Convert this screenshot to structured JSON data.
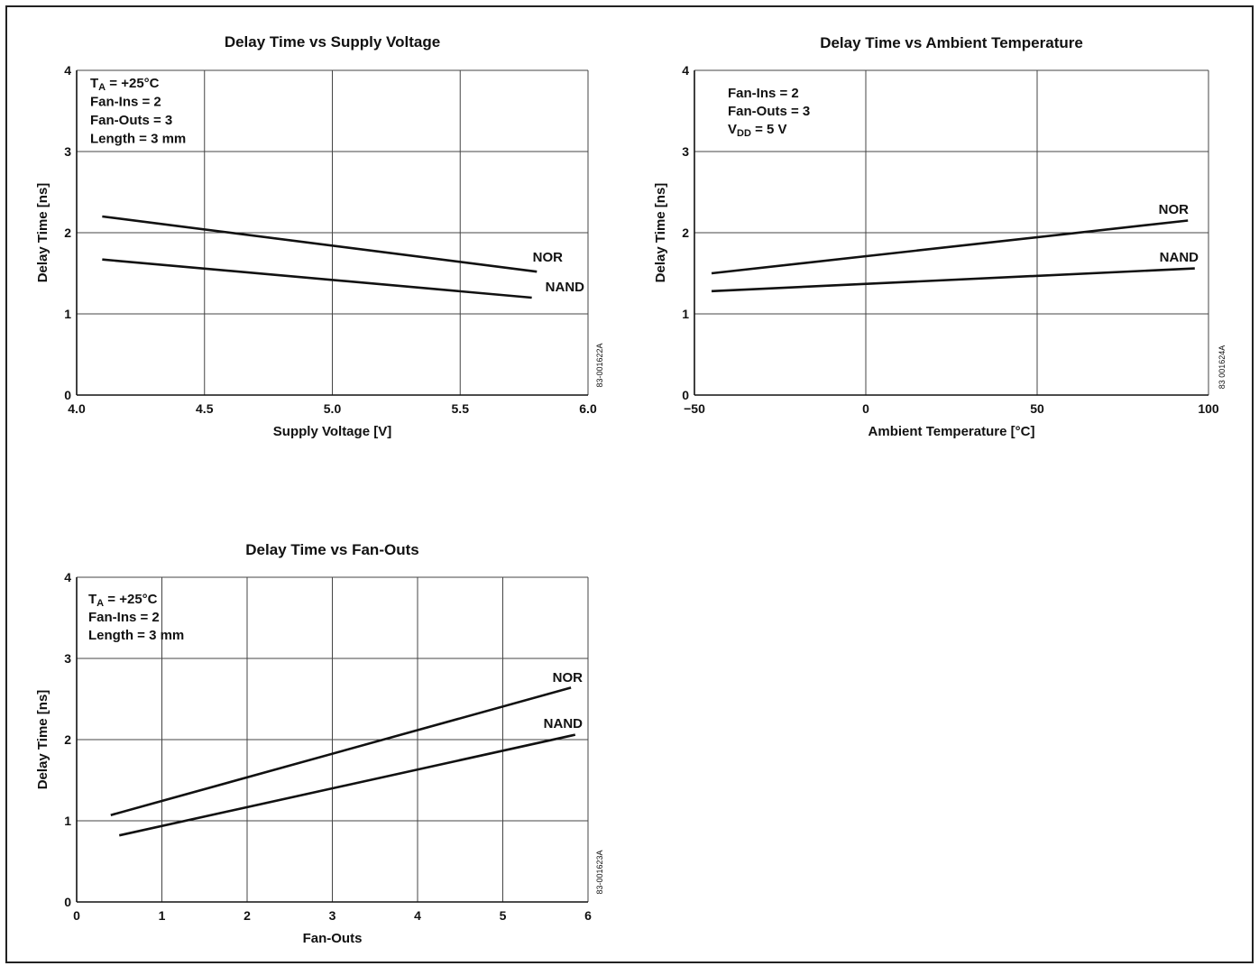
{
  "chart_data": [
    {
      "type": "line",
      "title": "Delay Time vs Supply Voltage",
      "xlabel": "Supply Voltage [V]",
      "ylabel": "Delay Time [ns]",
      "xlim": [
        4.0,
        6.0
      ],
      "ylim": [
        0,
        4
      ],
      "xticks": [
        4.0,
        4.5,
        5.0,
        5.5,
        6.0
      ],
      "xtick_labels": [
        "4.0",
        "4.5",
        "5.0",
        "5.5",
        "6.0"
      ],
      "yticks": [
        0,
        1,
        2,
        3,
        4
      ],
      "ytick_labels": [
        "0",
        "1",
        "2",
        "3",
        "4"
      ],
      "grid": true,
      "annotations": [
        {
          "main": "T",
          "sub": "A",
          "rest": " = +25°C"
        },
        {
          "main": "Fan-Ins = 2",
          "sub": "",
          "rest": ""
        },
        {
          "main": "Fan-Outs = 3",
          "sub": "",
          "rest": ""
        },
        {
          "main": "Length = 3 mm",
          "sub": "",
          "rest": ""
        }
      ],
      "code": "83-001622A",
      "series": [
        {
          "name": "NOR",
          "x": [
            4.1,
            5.8
          ],
          "y": [
            2.2,
            1.52
          ]
        },
        {
          "name": "NAND",
          "x": [
            4.1,
            5.78
          ],
          "y": [
            1.67,
            1.2
          ]
        }
      ]
    },
    {
      "type": "line",
      "title": "Delay Time vs Ambient Temperature",
      "xlabel": "Ambient Temperature [°C]",
      "ylabel": "Delay Time [ns]",
      "xlim": [
        -50,
        100
      ],
      "ylim": [
        0,
        4
      ],
      "xticks": [
        -50,
        0,
        50,
        100
      ],
      "xtick_labels": [
        "−50",
        "0",
        "50",
        "100"
      ],
      "yticks": [
        0,
        1,
        2,
        3,
        4
      ],
      "ytick_labels": [
        "0",
        "1",
        "2",
        "3",
        "4"
      ],
      "grid": true,
      "annotations": [
        {
          "main": "Fan-Ins = 2",
          "sub": "",
          "rest": ""
        },
        {
          "main": "Fan-Outs = 3",
          "sub": "",
          "rest": ""
        },
        {
          "main": "V",
          "sub": "DD",
          "rest": " = 5 V"
        }
      ],
      "code": "83 001624A",
      "series": [
        {
          "name": "NOR",
          "x": [
            -45,
            94
          ],
          "y": [
            1.5,
            2.15
          ]
        },
        {
          "name": "NAND",
          "x": [
            -45,
            96
          ],
          "y": [
            1.28,
            1.56
          ]
        }
      ]
    },
    {
      "type": "line",
      "title": "Delay Time vs Fan-Outs",
      "xlabel": "Fan-Outs",
      "ylabel": "Delay Time [ns]",
      "xlim": [
        0,
        6
      ],
      "ylim": [
        0,
        4
      ],
      "xticks": [
        0,
        1,
        2,
        3,
        4,
        5,
        6
      ],
      "xtick_labels": [
        "0",
        "1",
        "2",
        "3",
        "4",
        "5",
        "6"
      ],
      "yticks": [
        0,
        1,
        2,
        3,
        4
      ],
      "ytick_labels": [
        "0",
        "1",
        "2",
        "3",
        "4"
      ],
      "grid": true,
      "annotations": [
        {
          "main": "T",
          "sub": "A",
          "rest": " = +25°C"
        },
        {
          "main": "Fan-Ins = 2",
          "sub": "",
          "rest": ""
        },
        {
          "main": "Length = 3 mm",
          "sub": "",
          "rest": ""
        }
      ],
      "code": "83-001623A",
      "series": [
        {
          "name": "NOR",
          "x": [
            0.4,
            5.8
          ],
          "y": [
            1.07,
            2.64
          ]
        },
        {
          "name": "NAND",
          "x": [
            0.5,
            5.85
          ],
          "y": [
            0.82,
            2.06
          ]
        }
      ]
    }
  ]
}
